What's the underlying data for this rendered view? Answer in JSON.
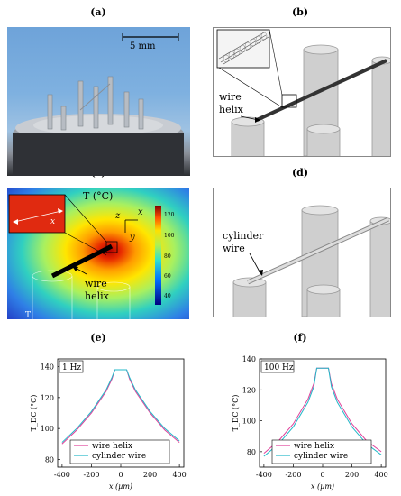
{
  "panels": {
    "a": "(a)",
    "b": "(b)",
    "c": "(c)",
    "d": "(d)",
    "e": "(e)",
    "f": "(f)"
  },
  "photo": {
    "scale_label": "5 mm"
  },
  "schem_b": {
    "label_line1": "wire",
    "label_line2": "helix"
  },
  "heatmap": {
    "title": "T (°C)",
    "colorbar_ticks": [
      "120",
      "100",
      "80",
      "60",
      "40"
    ],
    "inset_x": "x",
    "axis_z": "z",
    "axis_x": "x",
    "axis_y": "y",
    "label_line1": "wire",
    "label_line2": "helix",
    "corner_label": "T"
  },
  "schem_d": {
    "label_line1": "cylinder",
    "label_line2": "wire"
  },
  "chart_data": [
    {
      "type": "line",
      "panel": "(e)",
      "annotation": "1 Hz",
      "xlabel": "x (µm)",
      "ylabel": "T_DC (°C)",
      "xlim": [
        -430,
        430
      ],
      "ylim": [
        75,
        145
      ],
      "xticks": [
        -400,
        -200,
        0,
        200,
        400
      ],
      "yticks": [
        80,
        100,
        120,
        140
      ],
      "legend": "bottom-center",
      "series": [
        {
          "name": "wire helix",
          "color": "#e0409a",
          "x": [
            -400,
            -300,
            -200,
            -100,
            -60,
            -40,
            0,
            40,
            60,
            100,
            200,
            300,
            400
          ],
          "y": [
            90,
            99,
            110,
            124,
            132,
            138,
            138,
            138,
            132,
            124,
            110,
            99,
            91
          ]
        },
        {
          "name": "cylinder wire",
          "color": "#22b8c8",
          "x": [
            -400,
            -300,
            -200,
            -100,
            -60,
            -40,
            0,
            40,
            60,
            100,
            200,
            300,
            400
          ],
          "y": [
            91,
            100,
            111,
            125,
            133,
            138,
            138,
            138,
            133,
            125,
            111,
            100,
            92
          ]
        }
      ]
    },
    {
      "type": "line",
      "panel": "(f)",
      "annotation": "100 Hz",
      "xlabel": "x (µm)",
      "ylabel": "T_DC (°C)",
      "xlim": [
        -430,
        430
      ],
      "ylim": [
        70,
        140
      ],
      "xticks": [
        -400,
        -200,
        0,
        200,
        400
      ],
      "yticks": [
        80,
        100,
        120,
        140
      ],
      "legend": "bottom-center",
      "series": [
        {
          "name": "wire helix",
          "color": "#e0409a",
          "x": [
            -400,
            -300,
            -200,
            -100,
            -60,
            -40,
            0,
            40,
            60,
            100,
            200,
            300,
            400
          ],
          "y": [
            79,
            87,
            98,
            114,
            124,
            134,
            134,
            134,
            124,
            114,
            98,
            87,
            80
          ]
        },
        {
          "name": "cylinder wire",
          "color": "#22b8c8",
          "x": [
            -400,
            -300,
            -200,
            -100,
            -60,
            -40,
            0,
            40,
            60,
            100,
            200,
            300,
            400
          ],
          "y": [
            77,
            85,
            96,
            112,
            122,
            134,
            134,
            134,
            122,
            112,
            96,
            85,
            78
          ]
        }
      ]
    }
  ]
}
